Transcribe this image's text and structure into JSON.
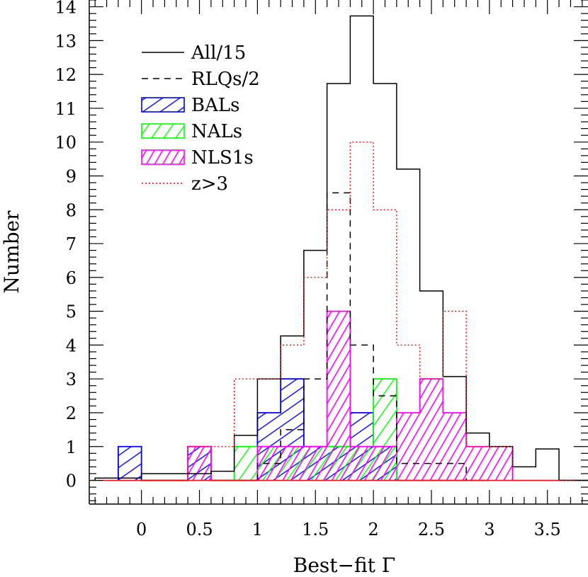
{
  "chart_data": {
    "type": "histogram",
    "xlabel": "Best−fit Γ",
    "ylabel": "Number",
    "xlim": [
      -0.45,
      3.85
    ],
    "ylim": [
      -0.7,
      14.2
    ],
    "xticks_major": [
      0,
      0.5,
      1,
      1.5,
      2,
      2.5,
      3,
      3.5
    ],
    "xtick_labels": [
      "0",
      "0.5",
      "1",
      "1.5",
      "2",
      "2.5",
      "3",
      "3.5"
    ],
    "yticks_major": [
      0,
      1,
      2,
      3,
      4,
      5,
      6,
      7,
      8,
      9,
      10,
      11,
      12,
      13,
      14
    ],
    "ytick_labels": [
      "0",
      "1",
      "2",
      "3",
      "4",
      "5",
      "6",
      "7",
      "8",
      "9",
      "10",
      "11",
      "12",
      "13",
      "14"
    ],
    "bin_width": 0.2,
    "legend_position": "top-left",
    "series": [
      {
        "name": "All/15",
        "style": "solid",
        "color": "#000000",
        "edges": [
          -0.4,
          -0.2,
          0.0,
          0.2,
          0.4,
          0.6,
          0.8,
          1.0,
          1.2,
          1.4,
          1.6,
          1.8,
          2.0,
          2.2,
          2.4,
          2.6,
          2.8,
          3.0,
          3.2,
          3.4,
          3.6,
          3.85
        ],
        "values": [
          0.07,
          0.07,
          0.2,
          0.2,
          0.2,
          0.27,
          1.33,
          3.0,
          4.27,
          6.8,
          11.73,
          13.73,
          11.73,
          9.2,
          5.6,
          3.07,
          1.4,
          1.0,
          0.4,
          0.93,
          0.0
        ]
      },
      {
        "name": "RLQs/2",
        "style": "dashed",
        "color": "#000000",
        "edges": [
          1.0,
          1.2,
          1.4,
          1.6,
          1.8,
          2.0,
          2.2,
          2.4,
          2.6,
          2.8
        ],
        "values": [
          0.5,
          1.5,
          3.0,
          8.5,
          4.0,
          2.5,
          0.5,
          0.5,
          0.5
        ]
      },
      {
        "name": "BALs",
        "style": "hatched",
        "color": "#0000ff",
        "edges": [
          -0.2,
          0.0,
          0.2,
          0.4,
          0.6,
          0.8,
          1.0,
          1.2,
          1.4,
          1.6,
          1.8,
          2.0,
          2.2
        ],
        "values": [
          1,
          0,
          0,
          1,
          0,
          0,
          2,
          3,
          1,
          1,
          2,
          1
        ]
      },
      {
        "name": "NALs",
        "style": "hatched",
        "color": "#00ff00",
        "edges": [
          0.8,
          1.0,
          1.2,
          1.4,
          1.6,
          1.8,
          2.0,
          2.2,
          2.4,
          2.6,
          2.8,
          3.0
        ],
        "values": [
          1,
          1,
          1,
          1,
          1,
          1,
          3,
          0,
          0,
          0,
          0
        ]
      },
      {
        "name": "NLS1s",
        "style": "hatched",
        "color": "#ff00ff",
        "edges": [
          0.4,
          0.6,
          0.8,
          1.0,
          1.2,
          1.4,
          1.6,
          1.8,
          2.0,
          2.2,
          2.4,
          2.6,
          2.8,
          3.0,
          3.2
        ],
        "values": [
          1,
          0,
          0,
          1,
          1,
          1,
          5,
          1,
          1,
          2,
          3,
          2,
          1,
          1
        ]
      },
      {
        "name": "z>3",
        "style": "dotted",
        "color": "#ff0000",
        "edges": [
          0.4,
          0.6,
          0.8,
          1.0,
          1.2,
          1.4,
          1.6,
          1.8,
          2.0,
          2.2,
          2.4,
          2.6,
          2.8,
          3.0,
          3.2,
          3.85
        ],
        "values": [
          1,
          1,
          3,
          3,
          4,
          6,
          8,
          10,
          8,
          4,
          3,
          5,
          1,
          1,
          0
        ]
      }
    ]
  }
}
